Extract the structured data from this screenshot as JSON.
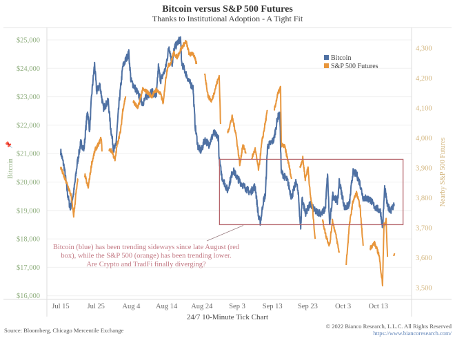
{
  "chart_data": {
    "type": "line",
    "title": "Bitcoin versus S&P 500 Futures",
    "subtitle": "Thanks to Institutional Adoption - A Tight Fit",
    "xlabel": "24/7 10-Minute Tick Chart",
    "x_unit": "days since Jul 15",
    "x_ticks": [
      {
        "label": "Jul 15",
        "day": 0
      },
      {
        "label": "Jul 25",
        "day": 10
      },
      {
        "label": "Aug 4",
        "day": 20
      },
      {
        "label": "Aug 14",
        "day": 30
      },
      {
        "label": "Aug 24",
        "day": 40
      },
      {
        "label": "Sep 3",
        "day": 50
      },
      {
        "label": "Sep 13",
        "day": 60
      },
      {
        "label": "Sep 23",
        "day": 70
      },
      {
        "label": "Oct 3",
        "day": 80
      },
      {
        "label": "Oct 13",
        "day": 90
      }
    ],
    "y_left": {
      "label": "Bitcoin",
      "pin_icon": "pushpin-icon",
      "ylim": [
        16000,
        25000
      ],
      "ticks": [
        {
          "v": 25000,
          "label": "$25,000"
        },
        {
          "v": 24000,
          "label": "$24,000"
        },
        {
          "v": 23000,
          "label": "$23,000"
        },
        {
          "v": 22000,
          "label": "$22,000"
        },
        {
          "v": 21000,
          "label": "$21,000"
        },
        {
          "v": 20000,
          "label": "$20,000"
        },
        {
          "v": 19000,
          "label": "$19,000"
        },
        {
          "v": 18000,
          "label": "$18,000"
        },
        {
          "v": 17000,
          "label": "$17,000"
        },
        {
          "v": 16000,
          "label": "$16,000"
        }
      ]
    },
    "y_right": {
      "label": "Nearby S&P 500 Futures",
      "ylim": [
        3500,
        4300
      ],
      "ticks": [
        {
          "v": 4300,
          "label": "4,300"
        },
        {
          "v": 4200,
          "label": "4,200"
        },
        {
          "v": 4100,
          "label": "4,100"
        },
        {
          "v": 4000,
          "label": "4,000"
        },
        {
          "v": 3900,
          "label": "3,900"
        },
        {
          "v": 3800,
          "label": "3,800"
        },
        {
          "v": 3700,
          "label": "3,700"
        },
        {
          "v": 3600,
          "label": "3,600"
        },
        {
          "v": 3500,
          "label": "3,500"
        }
      ]
    },
    "grid": true,
    "legend_position": "top-right",
    "series": [
      {
        "name": "Bitcoin",
        "axis": "left",
        "color": "#4f71a3",
        "segments": [
          [
            [
              0,
              21080
            ],
            [
              1.0,
              20520
            ],
            [
              2.0,
              19550
            ],
            [
              2.7,
              19070
            ],
            [
              3.7,
              19625
            ],
            [
              4.7,
              20670
            ],
            [
              5.7,
              21390
            ],
            [
              6.6,
              21150
            ],
            [
              7.6,
              22530
            ],
            [
              8.2,
              21800
            ],
            [
              8.8,
              23090
            ],
            [
              9.6,
              24150
            ],
            [
              10.2,
              23180
            ],
            [
              11.1,
              23430
            ],
            [
              12.1,
              22600
            ],
            [
              13.5,
              22850
            ],
            [
              14.1,
              21970
            ],
            [
              15.0,
              21150
            ],
            [
              15.6,
              21250
            ],
            [
              16.6,
              22850
            ],
            [
              17.6,
              24060
            ],
            [
              19.3,
              24540
            ],
            [
              19.9,
              23570
            ],
            [
              21.3,
              23260
            ],
            [
              23.2,
              22770
            ],
            [
              24.4,
              23015
            ],
            [
              25.8,
              23180
            ],
            [
              27.1,
              23015
            ],
            [
              27.7,
              24060
            ],
            [
              28.3,
              23570
            ],
            [
              29.7,
              23980
            ],
            [
              30.7,
              24780
            ],
            [
              31.6,
              24150
            ],
            [
              32.2,
              24710
            ],
            [
              34.0,
              25070
            ],
            [
              34.2,
              24225
            ],
            [
              35.5,
              23810
            ],
            [
              36.5,
              23500
            ],
            [
              37.5,
              23330
            ],
            [
              38.1,
              21970
            ],
            [
              38.9,
              21250
            ],
            [
              39.8,
              21080
            ],
            [
              40.8,
              21490
            ],
            [
              42.0,
              21320
            ],
            [
              43.4,
              21730
            ],
            [
              44.7,
              21560
            ],
            [
              44.9,
              20790
            ],
            [
              45.7,
              20180
            ],
            [
              47.3,
              19700
            ],
            [
              48.8,
              20420
            ],
            [
              50.6,
              20040
            ],
            [
              51.8,
              19870
            ],
            [
              53.7,
              19625
            ],
            [
              55.1,
              19870
            ],
            [
              56.1,
              18730
            ],
            [
              56.6,
              18585
            ],
            [
              57.4,
              19310
            ],
            [
              58.0,
              19550
            ],
            [
              58.6,
              21250
            ],
            [
              60.4,
              21490
            ],
            [
              61.5,
              22290
            ],
            [
              62.1,
              22360
            ],
            [
              62.5,
              20350
            ],
            [
              64.3,
              20040
            ],
            [
              65.4,
              19455
            ],
            [
              66.8,
              20040
            ],
            [
              67.4,
              19455
            ],
            [
              68.0,
              18340
            ],
            [
              68.4,
              19455
            ],
            [
              69.3,
              18900
            ],
            [
              70.7,
              19215
            ],
            [
              72.1,
              18970
            ],
            [
              74.0,
              18900
            ],
            [
              75.0,
              19070
            ],
            [
              75.6,
              20280
            ],
            [
              76.2,
              18490
            ],
            [
              77.1,
              19550
            ],
            [
              78.5,
              19310
            ],
            [
              78.9,
              20040
            ],
            [
              80.5,
              19070
            ],
            [
              81.8,
              19215
            ],
            [
              82.8,
              20350
            ],
            [
              83.8,
              20280
            ],
            [
              84.8,
              19940
            ],
            [
              85.7,
              19455
            ],
            [
              87.7,
              19385
            ],
            [
              88.9,
              19140
            ],
            [
              90.6,
              18970
            ],
            [
              91.2,
              18415
            ],
            [
              91.8,
              19795
            ],
            [
              92.6,
              19140
            ],
            [
              93.6,
              19020
            ],
            [
              94.5,
              19215
            ]
          ]
        ]
      },
      {
        "name": "S&P 500 Futures",
        "axis": "right",
        "color": "#e8963c",
        "segments": [
          [
            [
              0,
              3902
            ],
            [
              1.0,
              3870
            ],
            [
              2.0,
              3840
            ],
            [
              2.9,
              3810
            ],
            [
              3.7,
              3741
            ],
            [
              4.3,
              3810
            ],
            [
              4.9,
              3863
            ]
          ],
          [
            [
              6.8,
              3879
            ],
            [
              7.8,
              3833
            ],
            [
              8.8,
              3916
            ],
            [
              9.8,
              3962
            ],
            [
              10.7,
              3978
            ],
            [
              11.5,
              4001
            ],
            [
              11.7,
              3955
            ]
          ],
          [
            [
              13.7,
              3962
            ],
            [
              14.6,
              3955
            ],
            [
              15.4,
              3925
            ],
            [
              16.0,
              3978
            ],
            [
              17.0,
              4024
            ],
            [
              17.6,
              4093
            ],
            [
              18.4,
              4139
            ]
          ],
          [
            [
              20.5,
              4123
            ],
            [
              21.9,
              4100
            ],
            [
              23.2,
              4162
            ],
            [
              24.4,
              4155
            ],
            [
              25.8,
              4139
            ],
            [
              27.1,
              4162
            ],
            [
              28.3,
              4146
            ],
            [
              29.1,
              4116
            ],
            [
              29.7,
              4192
            ],
            [
              30.3,
              4238
            ],
            [
              31.3,
              4254
            ],
            [
              32.0,
              4284
            ],
            [
              33.0,
              4270
            ],
            [
              34.2,
              4300
            ],
            [
              35.5,
              4323
            ],
            [
              36.5,
              4277
            ],
            [
              37.5,
              4284
            ],
            [
              38.5,
              4247
            ]
          ],
          [
            [
              40.8,
              4215
            ],
            [
              41.8,
              4139
            ],
            [
              42.8,
              4123
            ],
            [
              43.9,
              4169
            ],
            [
              44.9,
              4208
            ],
            [
              45.3,
              4047
            ]
          ],
          [
            [
              47.3,
              4017
            ],
            [
              48.6,
              4070
            ],
            [
              49.6,
              4017
            ],
            [
              50.8,
              3909
            ],
            [
              51.6,
              3978
            ],
            [
              52.5,
              3948
            ]
          ],
          [
            [
              54.1,
              3932
            ],
            [
              55.1,
              3962
            ],
            [
              56.1,
              3893
            ],
            [
              57.0,
              3985
            ],
            [
              58.6,
              4093
            ]
          ],
          [
            [
              60.5,
              4093
            ],
            [
              61.5,
              4146
            ],
            [
              62.3,
              4169
            ],
            [
              62.5,
              3978
            ],
            [
              63.5,
              3971
            ],
            [
              64.8,
              3902
            ],
            [
              65.4,
              3863
            ]
          ],
          [
            [
              67.8,
              3902
            ],
            [
              68.6,
              3932
            ],
            [
              69.3,
              3863
            ],
            [
              70.1,
              3902
            ],
            [
              70.7,
              3810
            ],
            [
              71.3,
              3771
            ],
            [
              72.1,
              3663
            ]
          ],
          [
            [
              74.2,
              3725
            ],
            [
              75.2,
              3672
            ],
            [
              76.2,
              3640
            ],
            [
              77.0,
              3725
            ],
            [
              77.9,
              3679
            ],
            [
              78.9,
              3617
            ]
          ],
          [
            [
              80.9,
              3580
            ],
            [
              81.8,
              3709
            ],
            [
              82.8,
              3787
            ],
            [
              83.8,
              3817
            ],
            [
              84.8,
              3771
            ],
            [
              85.7,
              3640
            ]
          ],
          [
            [
              87.7,
              3633
            ],
            [
              88.9,
              3649
            ],
            [
              90.2,
              3610
            ],
            [
              91.2,
              3511
            ],
            [
              91.6,
              3709
            ],
            [
              92.2,
              3725
            ],
            [
              92.6,
              3603
            ]
          ],
          [
            [
              94.3,
              3605
            ],
            [
              94.6,
              3615
            ]
          ]
        ]
      }
    ],
    "highlight_box": {
      "from_day": 45,
      "to_day": 97,
      "btc_low": 18500,
      "btc_high": 20800,
      "color": "#b5646b"
    },
    "annotation": {
      "lines": [
        "Bitcoin (blue) has been trending sideways since late August (red",
        "box), while the S&P 500 (orange) has been trending lower.",
        "Are Crypto and TradFi finally diverging?"
      ],
      "color": "#c27883"
    }
  },
  "footer": {
    "source": "Source: Bloomberg, Chicago Mercentile Exchange",
    "copyright": "© 2022 Bianco Research, L.L.C. All Rights Reserved",
    "url": "https://www.biancoresearch.com/"
  }
}
